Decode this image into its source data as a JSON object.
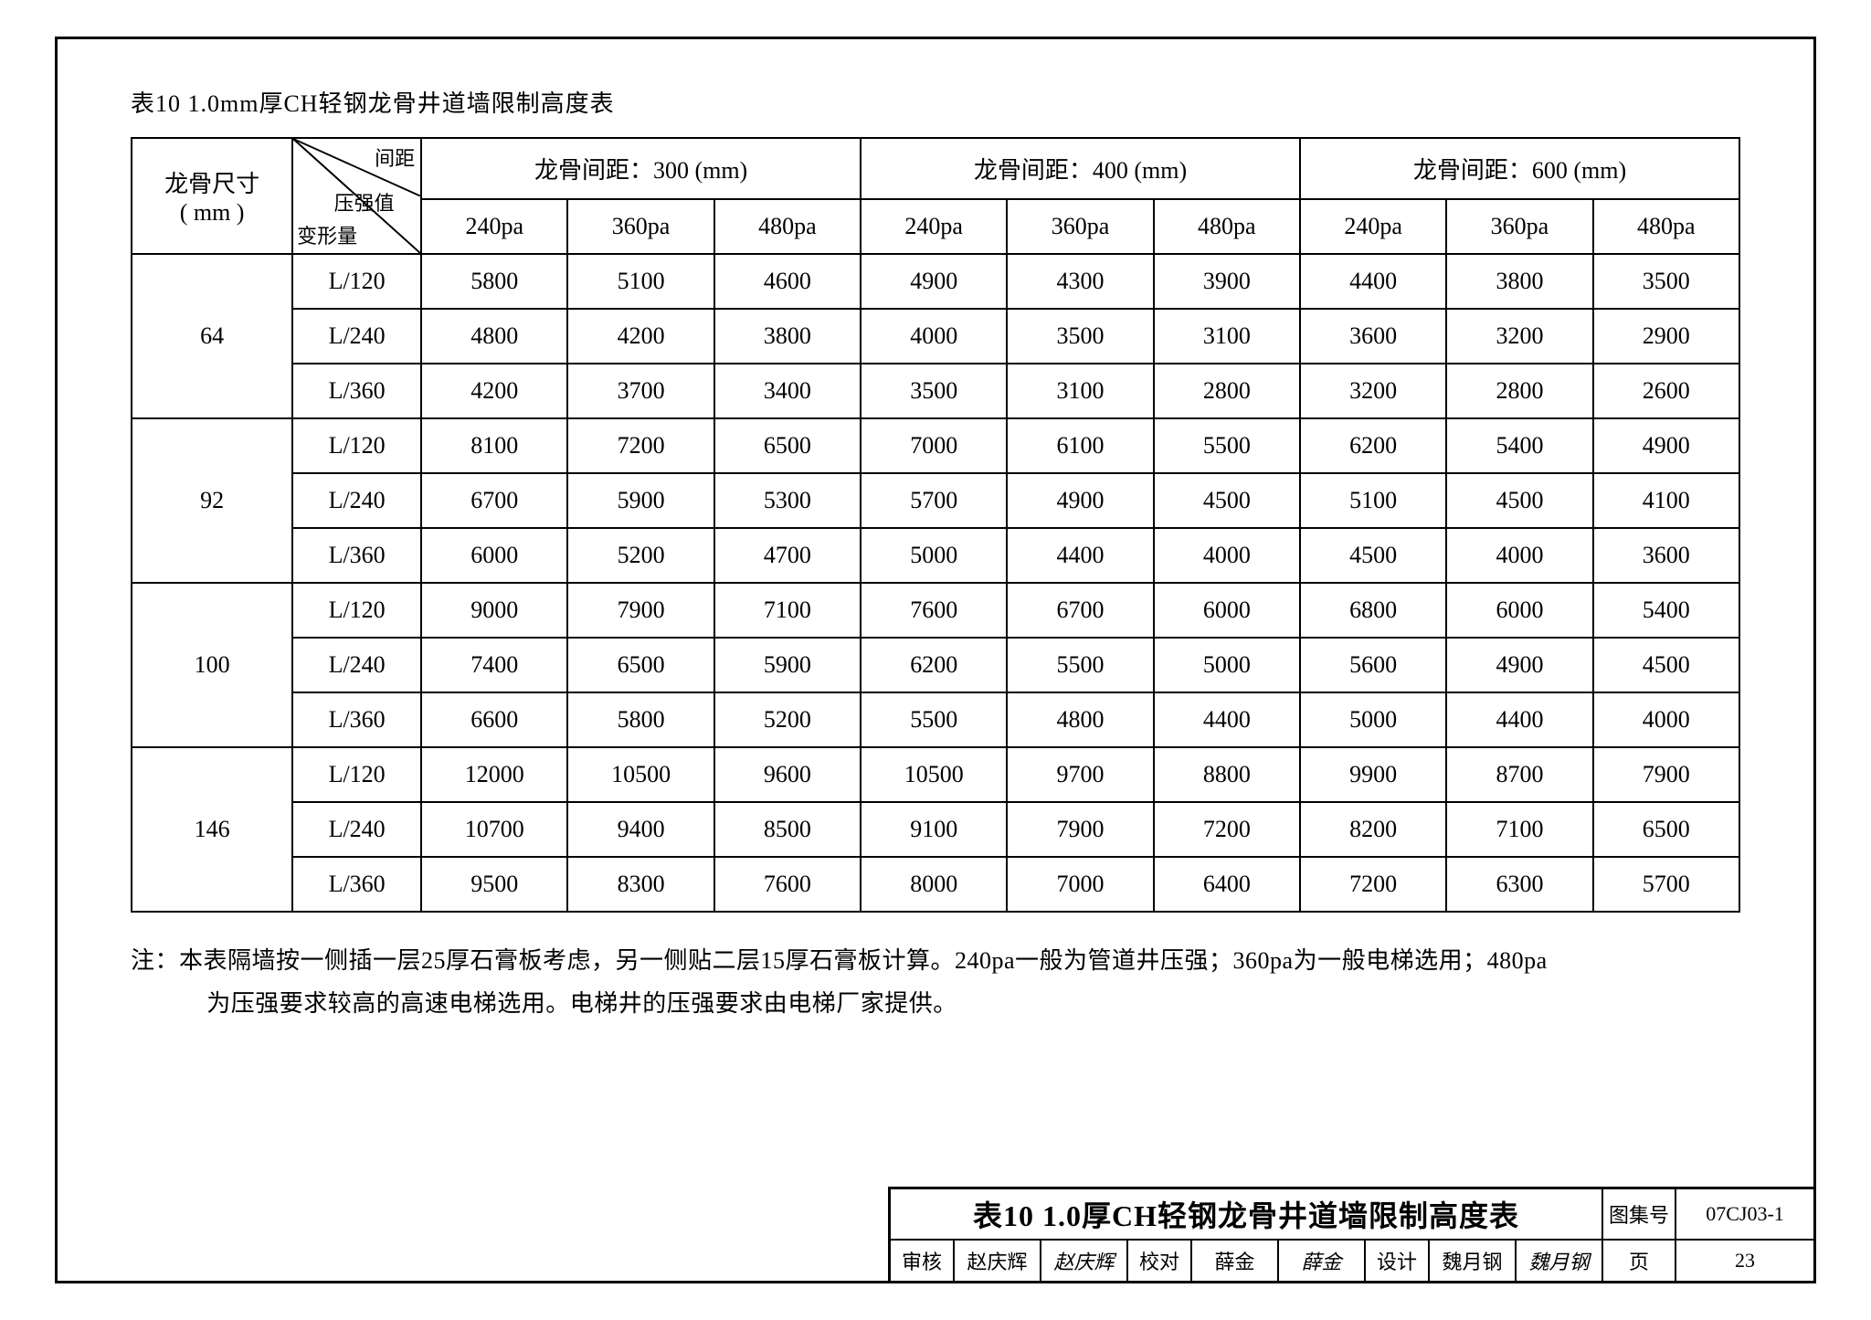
{
  "caption": "表10  1.0mm厚CH轻钢龙骨井道墙限制高度表",
  "header": {
    "size_label_1": "龙骨尺寸",
    "size_label_2": "( mm )",
    "diag_top": "间距",
    "diag_mid": "压强值",
    "diag_bottom": "变形量",
    "spacing_groups": [
      "龙骨间距：300 (mm)",
      "龙骨间距：400 (mm)",
      "龙骨间距：600 (mm)"
    ],
    "pressures": [
      "240pa",
      "360pa",
      "480pa"
    ]
  },
  "sizes": [
    "64",
    "92",
    "100",
    "146"
  ],
  "deflections": [
    "L/120",
    "L/240",
    "L/360"
  ],
  "data": {
    "64": {
      "L/120": [
        "5800",
        "5100",
        "4600",
        "4900",
        "4300",
        "3900",
        "4400",
        "3800",
        "3500"
      ],
      "L/240": [
        "4800",
        "4200",
        "3800",
        "4000",
        "3500",
        "3100",
        "3600",
        "3200",
        "2900"
      ],
      "L/360": [
        "4200",
        "3700",
        "3400",
        "3500",
        "3100",
        "2800",
        "3200",
        "2800",
        "2600"
      ]
    },
    "92": {
      "L/120": [
        "8100",
        "7200",
        "6500",
        "7000",
        "6100",
        "5500",
        "6200",
        "5400",
        "4900"
      ],
      "L/240": [
        "6700",
        "5900",
        "5300",
        "5700",
        "4900",
        "4500",
        "5100",
        "4500",
        "4100"
      ],
      "L/360": [
        "6000",
        "5200",
        "4700",
        "5000",
        "4400",
        "4000",
        "4500",
        "4000",
        "3600"
      ]
    },
    "100": {
      "L/120": [
        "9000",
        "7900",
        "7100",
        "7600",
        "6700",
        "6000",
        "6800",
        "6000",
        "5400"
      ],
      "L/240": [
        "7400",
        "6500",
        "5900",
        "6200",
        "5500",
        "5000",
        "5600",
        "4900",
        "4500"
      ],
      "L/360": [
        "6600",
        "5800",
        "5200",
        "5500",
        "4800",
        "4400",
        "5000",
        "4400",
        "4000"
      ]
    },
    "146": {
      "L/120": [
        "12000",
        "10500",
        "9600",
        "10500",
        "9700",
        "8800",
        "9900",
        "8700",
        "7900"
      ],
      "L/240": [
        "10700",
        "9400",
        "8500",
        "9100",
        "7900",
        "7200",
        "8200",
        "7100",
        "6500"
      ],
      "L/360": [
        "9500",
        "8300",
        "7600",
        "8000",
        "7000",
        "6400",
        "7200",
        "6300",
        "5700"
      ]
    }
  },
  "note_label": "注：",
  "note_line1": "本表隔墙按一侧插一层25厚石膏板考虑，另一侧贴二层15厚石膏板计算。240pa一般为管道井压强；360pa为一般电梯选用；480pa",
  "note_line2": "为压强要求较高的高速电梯选用。电梯井的压强要求由电梯厂家提供。",
  "titleblock": {
    "main_title": "表10 1.0厚CH轻钢龙骨井道墙限制高度表",
    "atlas_label": "图集号",
    "atlas_value": "07CJ03-1",
    "review_label": "审核",
    "review_name": "赵庆辉",
    "review_sig": "赵庆辉",
    "check_label": "校对",
    "check_name": "薛金",
    "check_sig": "薛金",
    "design_label": "设计",
    "design_name": "魏月钢",
    "design_sig": "魏月钢",
    "page_label": "页",
    "page_value": "23"
  }
}
